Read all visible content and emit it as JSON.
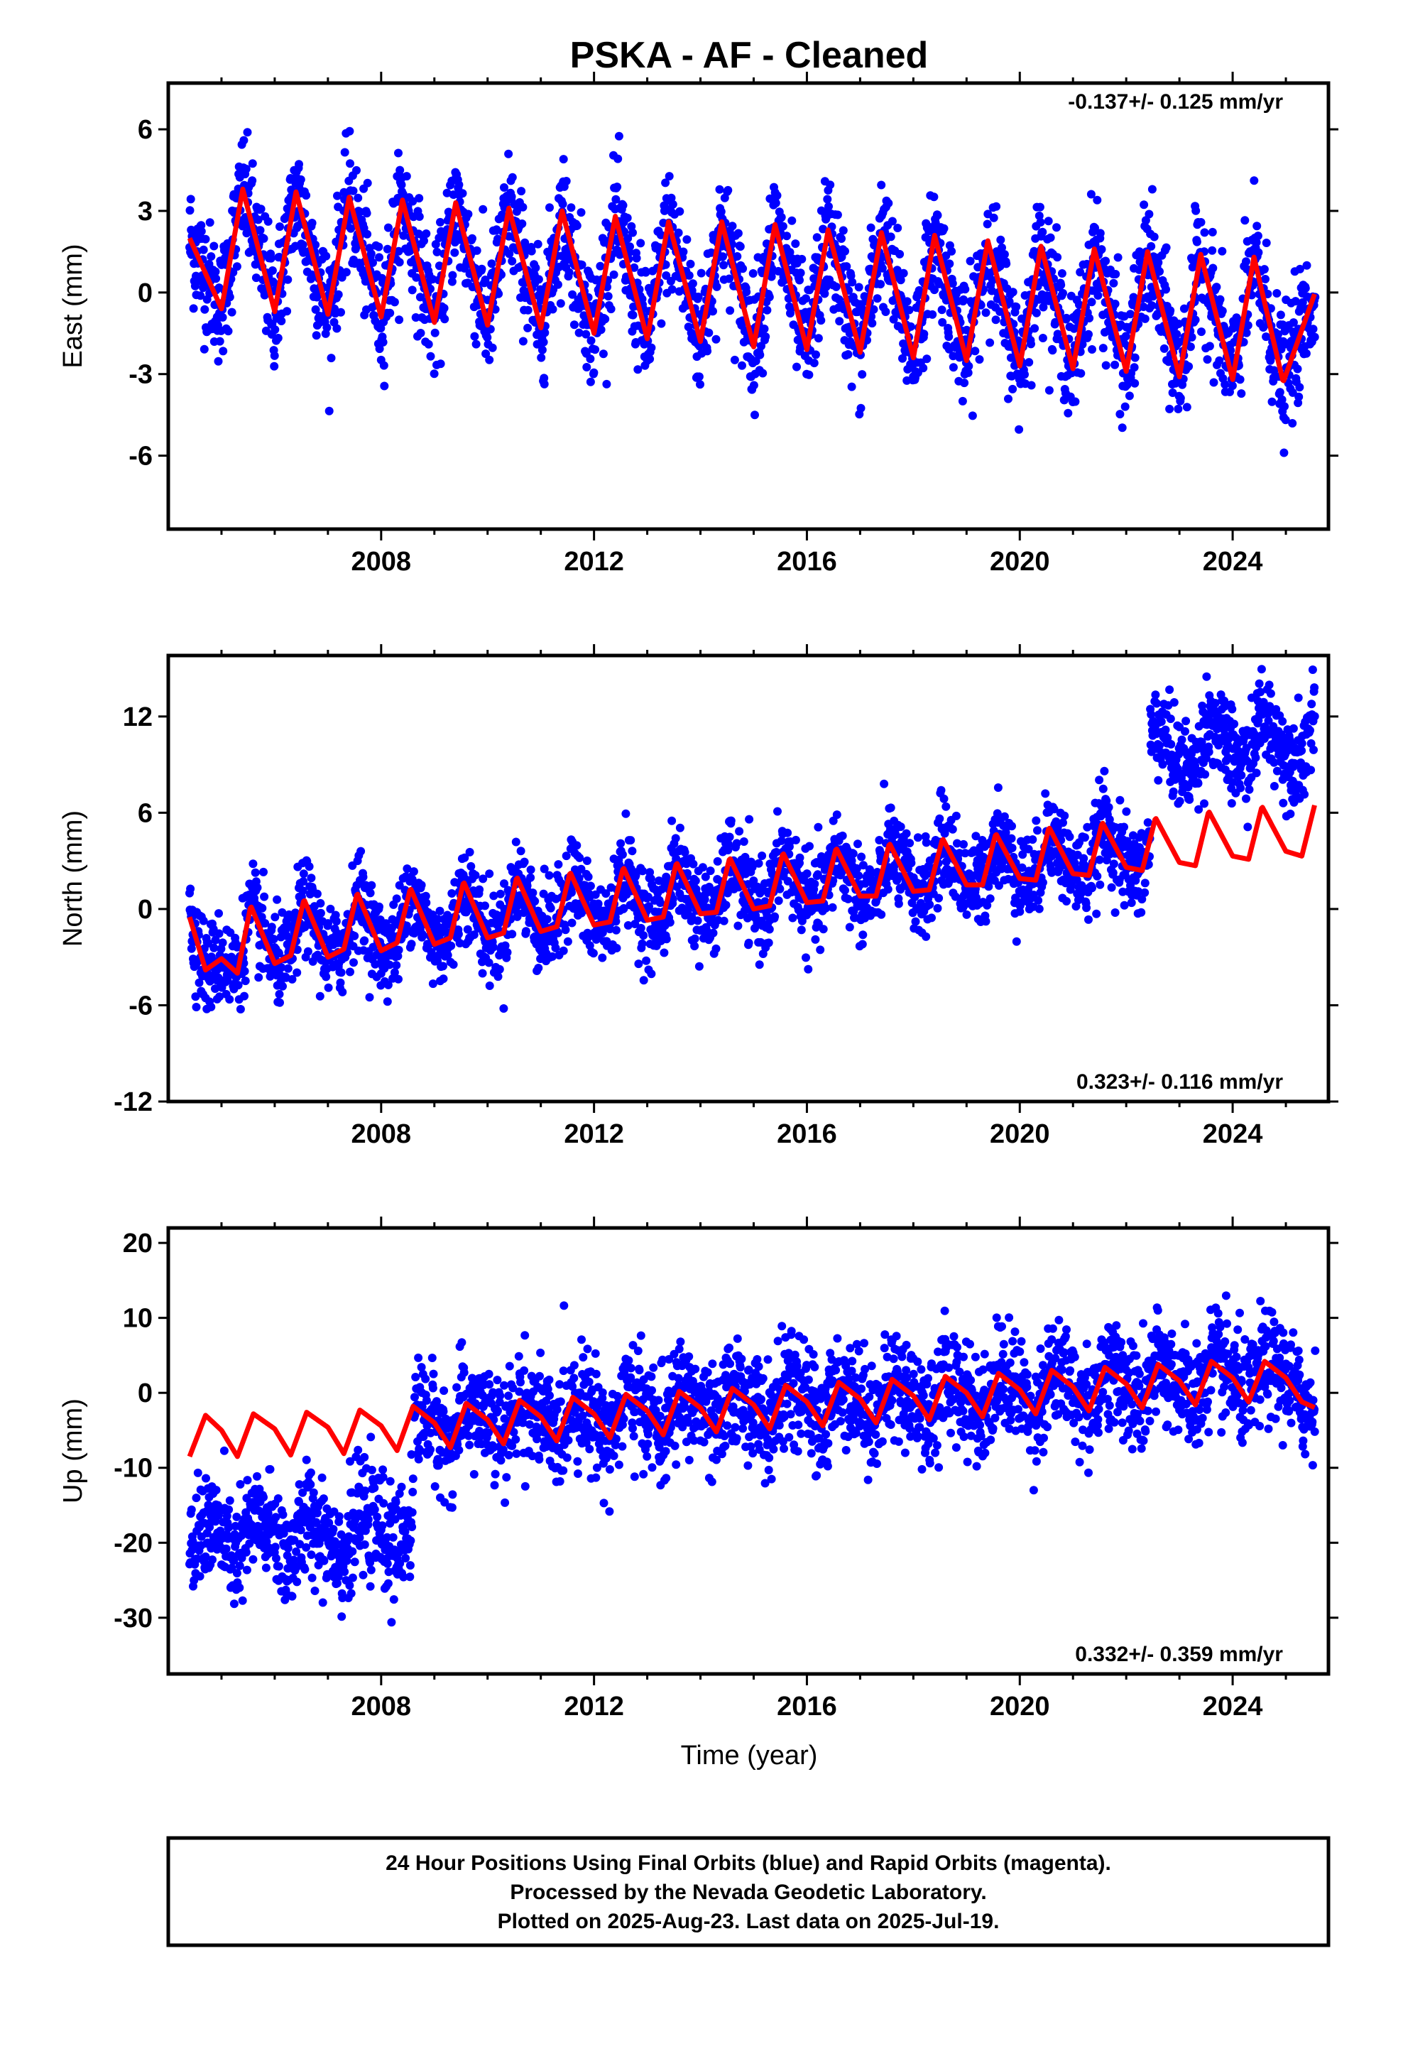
{
  "title": "PSKA  - AF - Cleaned",
  "xlabel": "Time (year)",
  "footer": {
    "line1": "24 Hour Positions Using Final Orbits (blue) and Rapid Orbits (magenta).",
    "line2": "Processed by the Nevada Geodetic Laboratory.",
    "line3": "Plotted on 2025-Aug-23. Last data on 2025-Jul-19."
  },
  "colors": {
    "final_orbits": "#0000ff",
    "model_fit": "#ff0000"
  },
  "chart_data": [
    {
      "type": "scatter",
      "ylabel": "East (mm)",
      "rate_label": "-0.137+/- 0.125 mm/yr",
      "rate_position": "top-right",
      "x_range": [
        2004.0,
        2025.8
      ],
      "ylim": [
        -8.7,
        7.7
      ],
      "yticks": [
        6,
        3,
        0,
        -3,
        -6
      ],
      "yticklabels": [
        "6",
        "3",
        "0",
        "-3",
        "-6"
      ],
      "xticks": [
        2008,
        2012,
        2016,
        2020,
        2024
      ],
      "xticklabels": [
        "2008",
        "2012",
        "2016",
        "2020",
        "2024"
      ],
      "data_start": 2004.4,
      "data_end": 2025.55,
      "noise_sd": 1.1,
      "series": [
        {
          "x": [
            2004.4,
            2005.0,
            2005.4,
            2006.0,
            2006.4,
            2007.0,
            2007.4,
            2008.0,
            2008.4,
            2009.0,
            2009.4,
            2010.0,
            2010.4,
            2011.0,
            2011.4,
            2012.0,
            2012.4,
            2013.0,
            2013.4,
            2014.0,
            2014.4,
            2015.0,
            2015.4,
            2016.0,
            2016.4,
            2017.0,
            2017.4,
            2018.0,
            2018.4,
            2019.0,
            2019.4,
            2020.0,
            2020.4,
            2021.0,
            2021.4,
            2022.0,
            2022.4,
            2023.0,
            2023.4,
            2024.0,
            2024.4,
            2024.95,
            2025.55
          ],
          "y": [
            2.0,
            -0.6,
            3.8,
            -0.7,
            3.7,
            -0.8,
            3.5,
            -0.9,
            3.4,
            -1.1,
            3.3,
            -1.2,
            3.1,
            -1.3,
            3.0,
            -1.5,
            2.8,
            -1.7,
            2.6,
            -1.8,
            2.6,
            -2.0,
            2.5,
            -2.1,
            2.3,
            -2.2,
            2.2,
            -2.4,
            2.1,
            -2.5,
            1.9,
            -2.7,
            1.7,
            -2.8,
            1.6,
            -2.9,
            1.5,
            -3.1,
            1.4,
            -3.2,
            1.3,
            -3.3,
            0.0
          ]
        }
      ]
    },
    {
      "type": "scatter",
      "ylabel": "North (mm)",
      "rate_label": "0.323+/- 0.116 mm/yr",
      "rate_position": "bottom-right",
      "x_range": [
        2004.0,
        2025.8
      ],
      "ylim": [
        -12.0,
        15.8
      ],
      "yticks": [
        12,
        6,
        0,
        -6,
        -12
      ],
      "yticklabels": [
        "12",
        "6",
        "0",
        "-6",
        "-12"
      ],
      "xticks": [
        2008,
        2012,
        2016,
        2020,
        2024
      ],
      "xticklabels": [
        "2008",
        "2012",
        "2016",
        "2020",
        "2024"
      ],
      "data_start": 2004.4,
      "data_end": 2025.55,
      "noise_sd": 1.4,
      "series": [
        {
          "x": [
            2004.4,
            2004.7,
            2005.0,
            2005.3,
            2005.55,
            2006.0,
            2006.3,
            2006.55,
            2007.0,
            2007.3,
            2007.55,
            2008.0,
            2008.3,
            2008.55,
            2009.0,
            2009.3,
            2009.55,
            2010.0,
            2010.3,
            2010.55,
            2011.0,
            2011.3,
            2011.55,
            2012.0,
            2012.3,
            2012.55,
            2013.0,
            2013.3,
            2013.55,
            2014.0,
            2014.3,
            2014.55,
            2015.0,
            2015.3,
            2015.55,
            2016.0,
            2016.3,
            2016.55,
            2017.0,
            2017.3,
            2017.55,
            2018.0,
            2018.3,
            2018.55,
            2019.0,
            2019.3,
            2019.55,
            2020.0,
            2020.3,
            2020.55,
            2021.0,
            2021.3,
            2021.55,
            2022.0,
            2022.3,
            2022.55,
            2023.0,
            2023.3,
            2023.55,
            2024.0,
            2024.3,
            2024.55,
            2025.0,
            2025.3,
            2025.55
          ],
          "y": [
            -0.5,
            -3.8,
            -3.1,
            -4.0,
            0.2,
            -3.4,
            -2.9,
            0.6,
            -3.0,
            -2.5,
            1.0,
            -2.6,
            -2.1,
            1.3,
            -2.2,
            -1.8,
            1.7,
            -1.8,
            -1.5,
            2.0,
            -1.4,
            -1.1,
            2.3,
            -1.0,
            -0.8,
            2.6,
            -0.7,
            -0.5,
            2.9,
            -0.3,
            -0.2,
            3.2,
            0.0,
            0.2,
            3.5,
            0.4,
            0.5,
            3.8,
            0.8,
            0.8,
            4.1,
            1.1,
            1.2,
            4.4,
            1.5,
            1.5,
            4.7,
            1.9,
            1.8,
            5.1,
            2.2,
            2.1,
            5.4,
            2.6,
            2.4,
            5.7,
            2.9,
            2.7,
            6.1,
            3.3,
            3.1,
            6.4,
            3.6,
            3.3,
            6.6
          ]
        }
      ]
    },
    {
      "type": "scatter",
      "ylabel": "Up (mm)",
      "rate_label": "0.332+/- 0.359 mm/yr",
      "rate_position": "bottom-right",
      "x_range": [
        2004.0,
        2025.8
      ],
      "ylim": [
        -37.5,
        22.0
      ],
      "yticks": [
        20,
        10,
        0,
        -10,
        -20,
        -30
      ],
      "yticklabels": [
        "20",
        "10",
        "0",
        "-10",
        "-20",
        "-30"
      ],
      "xticks": [
        2008,
        2012,
        2016,
        2020,
        2024
      ],
      "xticklabels": [
        "2008",
        "2012",
        "2016",
        "2020",
        "2024"
      ],
      "data_start": 2004.4,
      "data_end": 2025.55,
      "noise_sd": 3.6,
      "series": [
        {
          "x": [
            2004.4,
            2004.7,
            2005.0,
            2005.3,
            2005.6,
            2006.0,
            2006.3,
            2006.6,
            2007.0,
            2007.3,
            2007.6,
            2008.0,
            2008.3,
            2008.6,
            2009.0,
            2009.3,
            2009.6,
            2010.0,
            2010.3,
            2010.6,
            2011.0,
            2011.3,
            2011.6,
            2012.0,
            2012.3,
            2012.6,
            2013.0,
            2013.3,
            2013.6,
            2014.0,
            2014.3,
            2014.6,
            2015.0,
            2015.3,
            2015.6,
            2016.0,
            2016.3,
            2016.6,
            2017.0,
            2017.3,
            2017.6,
            2018.0,
            2018.3,
            2018.6,
            2019.0,
            2019.3,
            2019.6,
            2020.0,
            2020.3,
            2020.6,
            2021.0,
            2021.3,
            2021.6,
            2022.0,
            2022.3,
            2022.6,
            2023.0,
            2023.3,
            2023.6,
            2024.0,
            2024.3,
            2024.6,
            2025.0,
            2025.3,
            2025.55
          ],
          "y": [
            -8.5,
            -3.0,
            -5.0,
            -8.5,
            -2.8,
            -4.8,
            -8.3,
            -2.6,
            -4.6,
            -8.1,
            -2.3,
            -4.4,
            -7.7,
            -1.8,
            -4.0,
            -7.3,
            -1.4,
            -3.6,
            -6.8,
            -1.0,
            -3.2,
            -6.4,
            -0.6,
            -2.8,
            -6.0,
            -0.2,
            -2.4,
            -5.6,
            0.2,
            -2.0,
            -5.2,
            0.6,
            -1.6,
            -4.8,
            1.0,
            -1.2,
            -4.4,
            1.4,
            -0.8,
            -4.0,
            1.8,
            -0.4,
            -3.6,
            2.2,
            0.0,
            -3.2,
            2.6,
            0.4,
            -2.8,
            3.0,
            0.8,
            -2.4,
            3.4,
            1.2,
            -2.0,
            3.8,
            1.6,
            -1.6,
            4.2,
            2.0,
            -1.2,
            4.2,
            2.0,
            -1.2,
            -2.0
          ]
        }
      ]
    }
  ]
}
